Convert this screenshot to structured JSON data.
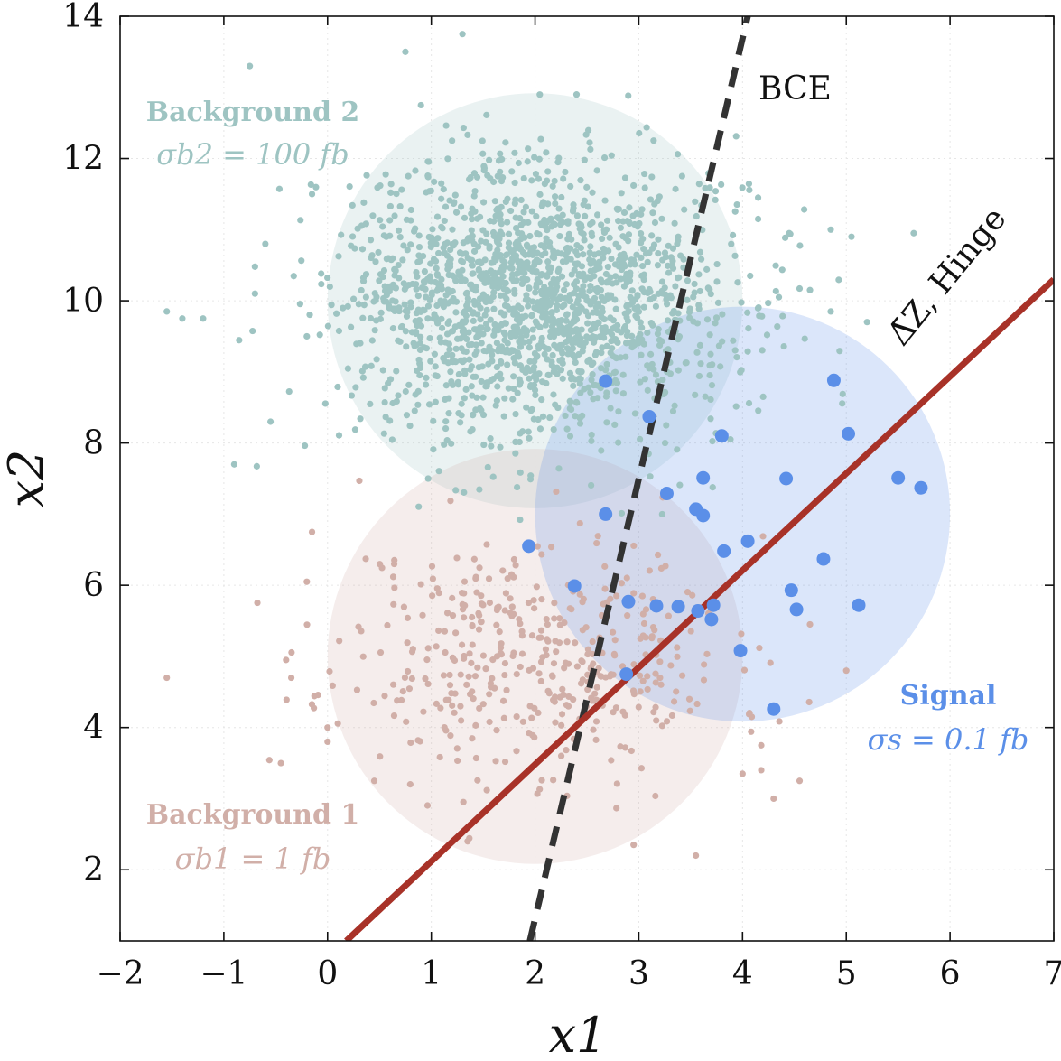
{
  "chart_data": {
    "type": "scatter",
    "xlabel": "x1",
    "ylabel": "x2",
    "xlim": [
      -2,
      7
    ],
    "ylim": [
      1,
      14
    ],
    "x_ticks": [
      -2,
      -1,
      0,
      1,
      2,
      3,
      4,
      5,
      6,
      7
    ],
    "x_tick_labels": [
      "−2",
      "−1",
      "0",
      "1",
      "2",
      "3",
      "4",
      "5",
      "6",
      "7"
    ],
    "y_ticks": [
      2,
      4,
      6,
      8,
      10,
      12,
      14
    ],
    "y_tick_labels": [
      "2",
      "4",
      "6",
      "8",
      "10",
      "12",
      "14"
    ],
    "grid": true,
    "colors": {
      "background1": "#d1afa8",
      "background2": "#9ec4c2",
      "signal": "#5b8fe8",
      "hinge_line": "#a83228",
      "bce_line": "#333333"
    },
    "regions": [
      {
        "name": "Background 2",
        "cx": 2.0,
        "cy": 10.0,
        "r": 2.0,
        "color": "#9ec4c2"
      },
      {
        "name": "Background 1",
        "cx": 2.0,
        "cy": 5.0,
        "r": 2.0,
        "color": "#d1afa8"
      },
      {
        "name": "Signal",
        "cx": 4.0,
        "cy": 7.0,
        "r": 2.0,
        "color": "#5b8fe8"
      }
    ],
    "labels": {
      "background2": {
        "name": "Background 2",
        "xsec": "σb2 = 100 fb"
      },
      "background1": {
        "name": "Background 1",
        "xsec": "σb1 = 1 fb"
      },
      "signal": {
        "name": "Signal",
        "xsec": "σs = 0.1 fb"
      },
      "bce": "BCE",
      "hinge": "Δ̄Z, Hinge"
    },
    "lines": [
      {
        "name": "BCE",
        "style": "dashed",
        "points": [
          [
            1.95,
            1.0
          ],
          [
            4.05,
            14.0
          ]
        ]
      },
      {
        "name": "Δ̄Z, Hinge",
        "style": "solid",
        "points": [
          [
            0.18,
            1.0
          ],
          [
            7.0,
            10.3
          ]
        ]
      }
    ],
    "series": [
      {
        "name": "Signal",
        "color": "#5b8fe8",
        "points": [
          [
            2.68,
            8.87
          ],
          [
            3.1,
            8.37
          ],
          [
            3.8,
            8.1
          ],
          [
            4.88,
            8.88
          ],
          [
            5.02,
            8.13
          ],
          [
            4.42,
            7.5
          ],
          [
            5.5,
            7.51
          ],
          [
            5.72,
            7.37
          ],
          [
            3.27,
            7.29
          ],
          [
            3.62,
            7.51
          ],
          [
            3.55,
            7.07
          ],
          [
            3.62,
            6.98
          ],
          [
            2.68,
            7.0
          ],
          [
            1.94,
            6.55
          ],
          [
            4.05,
            6.62
          ],
          [
            3.82,
            6.48
          ],
          [
            4.78,
            6.37
          ],
          [
            2.38,
            5.99
          ],
          [
            2.9,
            5.77
          ],
          [
            3.17,
            5.71
          ],
          [
            3.38,
            5.7
          ],
          [
            3.57,
            5.64
          ],
          [
            3.7,
            5.52
          ],
          [
            3.72,
            5.72
          ],
          [
            4.47,
            5.93
          ],
          [
            4.52,
            5.66
          ],
          [
            5.12,
            5.72
          ],
          [
            3.98,
            5.08
          ],
          [
            2.88,
            4.75
          ],
          [
            4.3,
            4.26
          ]
        ]
      },
      {
        "name": "Background 1",
        "color": "#d1afa8",
        "seed": 11,
        "count": 420,
        "mean": [
          2.0,
          5.0
        ],
        "std": [
          0.95,
          0.85
        ],
        "points": [
          [
            -1.55,
            4.7
          ],
          [
            -0.15,
            6.75
          ],
          [
            -0.2,
            6.05
          ],
          [
            -0.35,
            4.7
          ],
          [
            -0.4,
            4.95
          ],
          [
            -0.45,
            3.5
          ],
          [
            0.0,
            4.0
          ],
          [
            0.0,
            3.8
          ],
          [
            4.18,
            3.75
          ],
          [
            4.3,
            3.0
          ],
          [
            4.55,
            3.25
          ],
          [
            4.18,
            3.4
          ],
          [
            4.0,
            3.35
          ],
          [
            5.0,
            4.8
          ],
          [
            3.55,
            2.2
          ],
          [
            2.95,
            2.35
          ],
          [
            4.65,
            5.45
          ],
          [
            1.35,
            2.4
          ],
          [
            0.45,
            3.25
          ]
        ]
      },
      {
        "name": "Background 2",
        "color": "#9ec4c2",
        "seed": 7,
        "count": 1750,
        "mean": [
          2.0,
          10.0
        ],
        "std": [
          0.95,
          0.95
        ],
        "points": [
          [
            -0.75,
            13.3
          ],
          [
            1.3,
            13.75
          ],
          [
            0.75,
            13.5
          ],
          [
            -1.55,
            9.85
          ],
          [
            -1.4,
            9.75
          ],
          [
            -1.2,
            9.75
          ],
          [
            -0.9,
            7.7
          ],
          [
            -0.55,
            8.3
          ],
          [
            -0.15,
            11.5
          ],
          [
            -0.2,
            9.5
          ],
          [
            -0.6,
            10.8
          ],
          [
            -0.7,
            10.1
          ],
          [
            4.15,
            11.45
          ],
          [
            4.15,
            11.15
          ],
          [
            4.45,
            10.95
          ],
          [
            4.85,
            11.0
          ],
          [
            5.05,
            10.9
          ],
          [
            5.65,
            10.95
          ],
          [
            4.65,
            10.15
          ],
          [
            4.85,
            9.85
          ],
          [
            5.2,
            9.7
          ],
          [
            4.35,
            10.05
          ],
          [
            1.2,
            12.25
          ],
          [
            2.4,
            12.9
          ],
          [
            0.9,
            12.75
          ]
        ]
      }
    ]
  }
}
